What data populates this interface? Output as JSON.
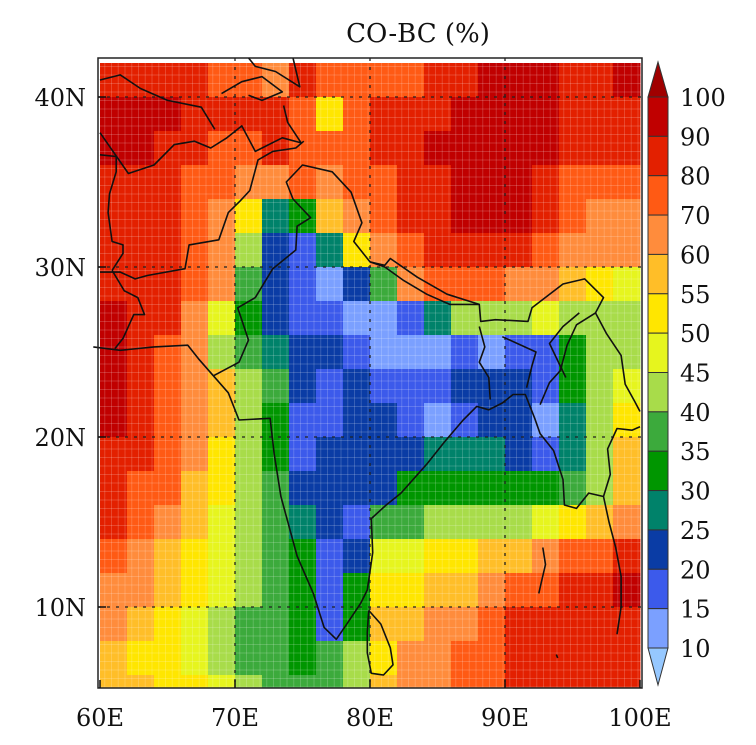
{
  "chart_data": {
    "type": "heatmap",
    "title": "CO-BC (%)",
    "xlabel": "",
    "ylabel": "",
    "x_ticks": [
      "60E",
      "70E",
      "80E",
      "90E",
      "100E"
    ],
    "x_tick_values": [
      60,
      70,
      80,
      90,
      100
    ],
    "y_ticks": [
      "40N",
      "30N",
      "20N",
      "10N"
    ],
    "y_tick_values": [
      40,
      30,
      20,
      10
    ],
    "xlim": [
      60,
      100
    ],
    "ylim": [
      5.3,
      42.3
    ],
    "grid": "dotted at tick values",
    "colorbar": {
      "placement": "right",
      "levels": [
        "100",
        "90",
        "80",
        "70",
        "60",
        "55",
        "50",
        "45",
        "40",
        "35",
        "30",
        "25",
        "20",
        "15",
        "10"
      ],
      "level_values": [
        100,
        90,
        80,
        70,
        60,
        55,
        50,
        45,
        40,
        35,
        30,
        25,
        20,
        15,
        10
      ],
      "colors": [
        "#c00000",
        "#e32000",
        "#ff5a14",
        "#ff8c3c",
        "#ffbe28",
        "#ffe600",
        "#e6f51e",
        "#a8dc4a",
        "#3caa3c",
        "#009600",
        "#00826a",
        "#0a3ca5",
        "#3c5aeb",
        "#7ba0ff"
      ],
      "over_color": "#a00000",
      "under_color": "#96c8ff"
    },
    "lon_centers": [
      61,
      63,
      65,
      67,
      69,
      71,
      73,
      75,
      77,
      79,
      81,
      83,
      85,
      87,
      89,
      91,
      93,
      95,
      97,
      99
    ],
    "lat_centers": [
      41,
      39,
      37,
      35,
      33,
      31,
      29,
      27,
      25,
      23,
      21,
      19,
      17,
      15,
      13,
      11,
      9,
      7,
      5
    ],
    "values": [
      [
        85,
        85,
        85,
        80,
        75,
        70,
        60,
        80,
        75,
        75,
        70,
        75,
        80,
        85,
        90,
        90,
        90,
        85,
        85,
        90
      ],
      [
        95,
        95,
        90,
        85,
        80,
        85,
        85,
        75,
        50,
        75,
        80,
        85,
        85,
        90,
        95,
        95,
        90,
        85,
        85,
        85
      ],
      [
        90,
        90,
        85,
        85,
        75,
        75,
        80,
        70,
        70,
        75,
        80,
        85,
        95,
        95,
        95,
        95,
        90,
        85,
        85,
        85
      ],
      [
        85,
        85,
        80,
        75,
        70,
        60,
        65,
        70,
        60,
        70,
        75,
        85,
        85,
        95,
        95,
        90,
        85,
        75,
        70,
        75
      ],
      [
        85,
        85,
        80,
        75,
        65,
        50,
        25,
        30,
        55,
        65,
        75,
        80,
        85,
        90,
        95,
        90,
        85,
        75,
        65,
        65
      ],
      [
        85,
        85,
        80,
        70,
        65,
        40,
        22,
        17,
        25,
        50,
        65,
        75,
        80,
        85,
        85,
        80,
        75,
        65,
        60,
        60
      ],
      [
        85,
        85,
        80,
        70,
        60,
        35,
        20,
        17,
        12,
        20,
        35,
        60,
        70,
        70,
        70,
        65,
        60,
        55,
        50,
        45
      ],
      [
        90,
        85,
        80,
        65,
        45,
        32,
        22,
        17,
        15,
        12,
        12,
        15,
        25,
        40,
        40,
        40,
        45,
        40,
        42,
        40
      ],
      [
        90,
        85,
        75,
        60,
        40,
        35,
        27,
        20,
        20,
        15,
        12,
        12,
        12,
        15,
        12,
        15,
        17,
        30,
        40,
        42
      ],
      [
        95,
        85,
        75,
        60,
        55,
        42,
        35,
        20,
        17,
        20,
        17,
        15,
        17,
        20,
        20,
        22,
        17,
        30,
        40,
        45
      ],
      [
        90,
        85,
        75,
        65,
        55,
        42,
        32,
        17,
        17,
        20,
        22,
        17,
        12,
        17,
        20,
        20,
        12,
        25,
        40,
        50
      ],
      [
        85,
        80,
        70,
        60,
        52,
        40,
        32,
        17,
        20,
        22,
        22,
        22,
        27,
        27,
        27,
        22,
        15,
        27,
        40,
        55
      ],
      [
        85,
        75,
        70,
        58,
        50,
        42,
        35,
        22,
        22,
        22,
        20,
        32,
        32,
        32,
        32,
        32,
        32,
        35,
        40,
        55
      ],
      [
        80,
        70,
        65,
        55,
        47,
        42,
        37,
        25,
        22,
        17,
        37,
        37,
        40,
        42,
        42,
        42,
        45,
        50,
        55,
        60
      ],
      [
        75,
        65,
        58,
        52,
        45,
        42,
        35,
        30,
        17,
        20,
        45,
        47,
        50,
        52,
        55,
        58,
        65,
        70,
        75,
        80
      ],
      [
        65,
        60,
        55,
        50,
        45,
        40,
        37,
        32,
        17,
        30,
        50,
        52,
        55,
        55,
        60,
        70,
        75,
        80,
        85,
        90
      ],
      [
        60,
        55,
        52,
        47,
        42,
        37,
        35,
        32,
        15,
        30,
        55,
        55,
        60,
        65,
        75,
        80,
        85,
        85,
        85,
        85
      ],
      [
        55,
        52,
        50,
        47,
        42,
        37,
        35,
        32,
        35,
        40,
        52,
        60,
        65,
        70,
        75,
        80,
        85,
        85,
        85,
        85
      ],
      [
        58,
        55,
        52,
        50,
        45,
        40,
        37,
        35,
        37,
        42,
        55,
        62,
        68,
        72,
        78,
        82,
        88,
        88,
        88,
        88
      ]
    ]
  }
}
